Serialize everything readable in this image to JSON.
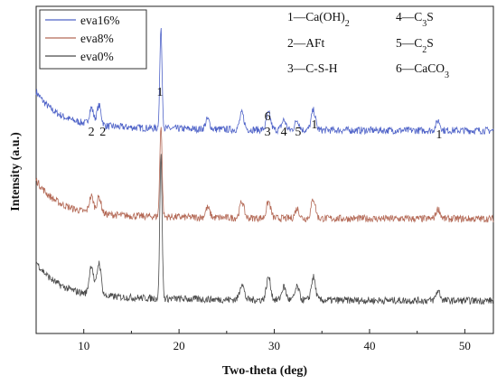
{
  "chart_data": {
    "type": "line",
    "xlabel": "Two-theta (deg)",
    "ylabel": "Intensity (a.u.)",
    "xlim": [
      5,
      53
    ],
    "xticks": [
      10,
      20,
      30,
      40,
      50
    ],
    "y_ticks_labeled": false,
    "grid": false,
    "legend_position": "top-left",
    "series": [
      {
        "name": "eva16%",
        "color": "#4f63c8",
        "baseline": 168,
        "base_offset": 0.62,
        "peaks": [
          [
            10.8,
            0.05
          ],
          [
            11.6,
            0.06
          ],
          [
            18.1,
            0.3
          ],
          [
            23.0,
            0.03
          ],
          [
            26.6,
            0.05
          ],
          [
            29.4,
            0.05
          ],
          [
            31.0,
            0.03
          ],
          [
            32.4,
            0.03
          ],
          [
            34.1,
            0.06
          ],
          [
            47.2,
            0.03
          ]
        ]
      },
      {
        "name": "eva8%",
        "color": "#b46a57",
        "baseline": 83,
        "base_offset": 0.35,
        "peaks": [
          [
            10.8,
            0.05
          ],
          [
            11.6,
            0.05
          ],
          [
            18.1,
            0.28
          ],
          [
            23.0,
            0.03
          ],
          [
            26.6,
            0.05
          ],
          [
            29.4,
            0.05
          ],
          [
            32.4,
            0.03
          ],
          [
            34.1,
            0.06
          ],
          [
            47.2,
            0.03
          ]
        ]
      },
      {
        "name": "eva0%",
        "color": "#4a4a4a",
        "baseline": 0,
        "base_offset": 0.1,
        "peaks": [
          [
            10.8,
            0.09
          ],
          [
            11.6,
            0.1
          ],
          [
            18.1,
            0.44
          ],
          [
            26.6,
            0.05
          ],
          [
            29.4,
            0.07
          ],
          [
            31.0,
            0.04
          ],
          [
            32.4,
            0.04
          ],
          [
            34.1,
            0.07
          ],
          [
            47.2,
            0.03
          ]
        ]
      }
    ],
    "peak_labels": [
      {
        "text": "2",
        "x": 10.8
      },
      {
        "text": "2",
        "x": 12.0
      },
      {
        "text": "1",
        "x": 18.0
      },
      {
        "text": "6",
        "x": 29.3
      },
      {
        "text": "3",
        "x": 29.3
      },
      {
        "text": "4",
        "x": 31.0
      },
      {
        "text": "5",
        "x": 32.5
      },
      {
        "text": "1",
        "x": 34.2
      },
      {
        "text": "1",
        "x": 47.3
      }
    ],
    "phase_legend": [
      {
        "number": "1",
        "name": "Ca(OH)",
        "sub": "2"
      },
      {
        "number": "2",
        "name": "AFt",
        "sub": ""
      },
      {
        "number": "3",
        "name": "C-S-H",
        "sub": ""
      },
      {
        "number": "4",
        "name": "C",
        "sub": "3",
        "suffix": "S"
      },
      {
        "number": "5",
        "name": "C",
        "sub": "2",
        "suffix": "S"
      },
      {
        "number": "6",
        "name": "CaCO",
        "sub": "3"
      }
    ]
  }
}
